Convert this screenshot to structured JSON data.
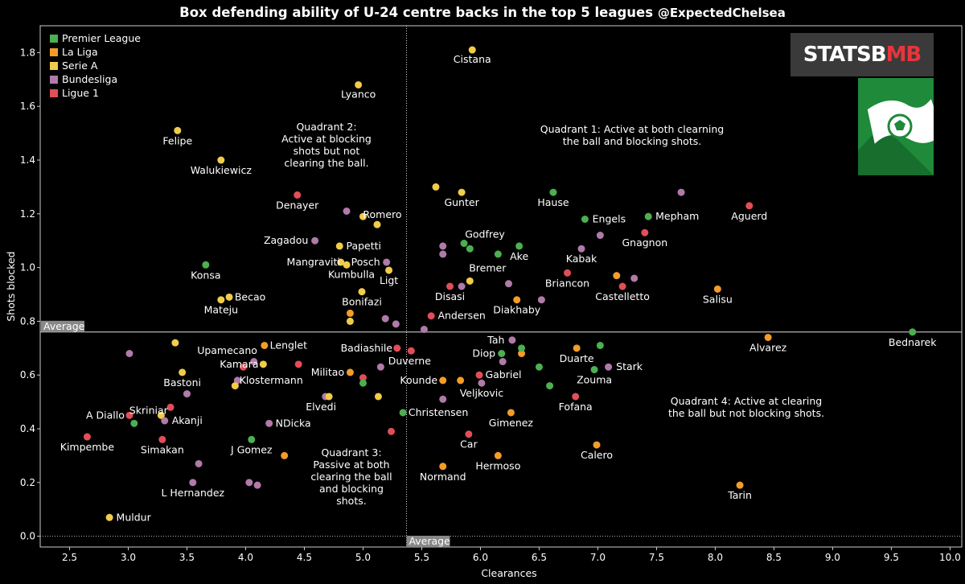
{
  "title": "Box defending ability of U-24 centre backs in the top 5 leagues",
  "handle": "@ExpectedChelsea",
  "logo": {
    "text_main": "STATSB",
    "text_accent": "MB"
  },
  "colors": {
    "premier_league": "#4caf50",
    "la_liga": "#f39c2a",
    "serie_a": "#f1cc4a",
    "bundesliga": "#b07aa9",
    "ligue_1": "#e04e58"
  },
  "legend": [
    {
      "key": "premier_league",
      "label": "Premier League"
    },
    {
      "key": "la_liga",
      "label": "La Liga"
    },
    {
      "key": "serie_a",
      "label": "Serie A"
    },
    {
      "key": "bundesliga",
      "label": "Bundesliga"
    },
    {
      "key": "ligue_1",
      "label": "Ligue 1"
    }
  ],
  "annotations": {
    "q1": [
      "Quadrant 1: Active at both clearning",
      "the ball and blocking shots."
    ],
    "q2": [
      "Quadrant 2:",
      "Active at blocking",
      "shots but not",
      "clearing the ball."
    ],
    "q3": [
      "Quadrant 3:",
      "Passive at both",
      "clearing the ball",
      "and blocking",
      "shots."
    ],
    "q4": [
      "Quadrant 4: Active at clearing",
      "the ball but not blocking shots."
    ],
    "avg_x_label": "Average",
    "avg_y_label": "Average"
  },
  "chart_data": {
    "type": "scatter",
    "xlabel": "Clearances",
    "ylabel": "Shots blocked",
    "xlim": [
      2.25,
      10.1
    ],
    "ylim": [
      -0.04,
      1.9
    ],
    "xticks": [
      "2.5",
      "3.0",
      "3.5",
      "4.0",
      "4.5",
      "5.0",
      "5.5",
      "6.0",
      "6.5",
      "7.0",
      "7.5",
      "8.0",
      "8.5",
      "9.0",
      "9.5",
      "10.0"
    ],
    "yticks": [
      "0.0",
      "0.2",
      "0.4",
      "0.6",
      "0.8",
      "1.0",
      "1.2",
      "1.4",
      "1.6",
      "1.8"
    ],
    "x_average": 5.37,
    "y_average": 0.76,
    "points": [
      {
        "x": 5.93,
        "y": 1.81,
        "league": "serie_a",
        "label": "Cistana"
      },
      {
        "x": 4.96,
        "y": 1.68,
        "league": "serie_a",
        "label": "Lyanco"
      },
      {
        "x": 3.42,
        "y": 1.51,
        "league": "serie_a",
        "label": "Felipe"
      },
      {
        "x": 3.79,
        "y": 1.4,
        "league": "serie_a",
        "label": "Walukiewicz"
      },
      {
        "x": 4.44,
        "y": 1.27,
        "league": "ligue_1",
        "label": "Denayer"
      },
      {
        "x": 4.86,
        "y": 1.21,
        "league": "bundesliga",
        "label": ""
      },
      {
        "x": 5.0,
        "y": 1.19,
        "league": "serie_a",
        "label": "Romero"
      },
      {
        "x": 5.12,
        "y": 1.16,
        "league": "serie_a",
        "label": ""
      },
      {
        "x": 5.62,
        "y": 1.3,
        "league": "serie_a",
        "label": ""
      },
      {
        "x": 5.84,
        "y": 1.28,
        "league": "serie_a",
        "label": "Gunter"
      },
      {
        "x": 6.62,
        "y": 1.28,
        "league": "premier_league",
        "label": "Hause"
      },
      {
        "x": 6.89,
        "y": 1.18,
        "league": "premier_league",
        "label": "Engels"
      },
      {
        "x": 7.43,
        "y": 1.19,
        "league": "premier_league",
        "label": "Mepham"
      },
      {
        "x": 7.71,
        "y": 1.28,
        "league": "bundesliga",
        "label": ""
      },
      {
        "x": 8.29,
        "y": 1.23,
        "league": "ligue_1",
        "label": "Aguerd"
      },
      {
        "x": 7.4,
        "y": 1.13,
        "league": "ligue_1",
        "label": "Gnagnon"
      },
      {
        "x": 7.02,
        "y": 1.12,
        "league": "bundesliga",
        "label": ""
      },
      {
        "x": 4.59,
        "y": 1.1,
        "league": "bundesliga",
        "label": "Zagadou"
      },
      {
        "x": 4.8,
        "y": 1.08,
        "league": "serie_a",
        "label": "Papetti"
      },
      {
        "x": 4.81,
        "y": 1.02,
        "league": "serie_a",
        "label": "Mangraviti"
      },
      {
        "x": 4.86,
        "y": 1.01,
        "league": "serie_a",
        "label": "Kumbulla"
      },
      {
        "x": 5.2,
        "y": 1.02,
        "league": "bundesliga",
        "label": "Posch"
      },
      {
        "x": 5.22,
        "y": 0.99,
        "league": "serie_a",
        "label": "Ligt"
      },
      {
        "x": 5.68,
        "y": 1.08,
        "league": "bundesliga",
        "label": ""
      },
      {
        "x": 5.68,
        "y": 1.05,
        "league": "bundesliga",
        "label": ""
      },
      {
        "x": 5.86,
        "y": 1.09,
        "league": "premier_league",
        "label": "Godfrey"
      },
      {
        "x": 5.91,
        "y": 1.07,
        "league": "premier_league",
        "label": ""
      },
      {
        "x": 6.15,
        "y": 1.05,
        "league": "premier_league",
        "label": ""
      },
      {
        "x": 6.33,
        "y": 1.08,
        "league": "premier_league",
        "label": "Ake"
      },
      {
        "x": 6.86,
        "y": 1.07,
        "league": "bundesliga",
        "label": "Kabak"
      },
      {
        "x": 3.66,
        "y": 1.01,
        "league": "premier_league",
        "label": "Konsa"
      },
      {
        "x": 3.79,
        "y": 0.88,
        "league": "serie_a",
        "label": "Mateju"
      },
      {
        "x": 3.86,
        "y": 0.89,
        "league": "serie_a",
        "label": "Becao"
      },
      {
        "x": 4.99,
        "y": 0.91,
        "league": "serie_a",
        "label": "Bonifazi"
      },
      {
        "x": 4.89,
        "y": 0.83,
        "league": "la_liga",
        "label": ""
      },
      {
        "x": 4.89,
        "y": 0.8,
        "league": "serie_a",
        "label": ""
      },
      {
        "x": 5.19,
        "y": 0.81,
        "league": "bundesliga",
        "label": ""
      },
      {
        "x": 5.28,
        "y": 0.79,
        "league": "bundesliga",
        "label": ""
      },
      {
        "x": 5.52,
        "y": 0.77,
        "league": "bundesliga",
        "label": ""
      },
      {
        "x": 5.58,
        "y": 0.82,
        "league": "ligue_1",
        "label": "Andersen"
      },
      {
        "x": 5.74,
        "y": 0.93,
        "league": "ligue_1",
        "label": "Disasi"
      },
      {
        "x": 5.84,
        "y": 0.93,
        "league": "bundesliga",
        "label": ""
      },
      {
        "x": 5.91,
        "y": 0.95,
        "league": "serie_a",
        "label": "Bremer"
      },
      {
        "x": 6.24,
        "y": 0.94,
        "league": "bundesliga",
        "label": ""
      },
      {
        "x": 6.31,
        "y": 0.88,
        "league": "la_liga",
        "label": "Diakhaby"
      },
      {
        "x": 6.52,
        "y": 0.88,
        "league": "bundesliga",
        "label": ""
      },
      {
        "x": 6.74,
        "y": 0.98,
        "league": "ligue_1",
        "label": "Briancon"
      },
      {
        "x": 7.16,
        "y": 0.97,
        "league": "la_liga",
        "label": ""
      },
      {
        "x": 7.21,
        "y": 0.93,
        "league": "ligue_1",
        "label": "Castelletto"
      },
      {
        "x": 7.31,
        "y": 0.96,
        "league": "bundesliga",
        "label": ""
      },
      {
        "x": 8.02,
        "y": 0.92,
        "league": "la_liga",
        "label": "Salisu"
      },
      {
        "x": 8.45,
        "y": 0.74,
        "league": "la_liga",
        "label": "Alvarez"
      },
      {
        "x": 9.68,
        "y": 0.76,
        "league": "premier_league",
        "label": "Bednarek"
      },
      {
        "x": 3.4,
        "y": 0.72,
        "league": "serie_a",
        "label": ""
      },
      {
        "x": 3.01,
        "y": 0.68,
        "league": "bundesliga",
        "label": ""
      },
      {
        "x": 4.16,
        "y": 0.71,
        "league": "la_liga",
        "label": "Lenglet"
      },
      {
        "x": 3.98,
        "y": 0.63,
        "league": "ligue_1",
        "label": "Upamecano"
      },
      {
        "x": 4.07,
        "y": 0.65,
        "league": "bundesliga",
        "label": ""
      },
      {
        "x": 4.15,
        "y": 0.64,
        "league": "serie_a",
        "label": "Kamara"
      },
      {
        "x": 4.45,
        "y": 0.64,
        "league": "ligue_1",
        "label": ""
      },
      {
        "x": 3.93,
        "y": 0.58,
        "league": "bundesliga",
        "label": "Klostermann"
      },
      {
        "x": 3.91,
        "y": 0.56,
        "league": "serie_a",
        "label": ""
      },
      {
        "x": 3.46,
        "y": 0.61,
        "league": "serie_a",
        "label": "Bastoni"
      },
      {
        "x": 3.5,
        "y": 0.53,
        "league": "bundesliga",
        "label": ""
      },
      {
        "x": 4.89,
        "y": 0.61,
        "league": "la_liga",
        "label": "Militao"
      },
      {
        "x": 5.0,
        "y": 0.59,
        "league": "ligue_1",
        "label": ""
      },
      {
        "x": 5.0,
        "y": 0.57,
        "league": "premier_league",
        "label": ""
      },
      {
        "x": 4.68,
        "y": 0.52,
        "league": "bundesliga",
        "label": ""
      },
      {
        "x": 4.71,
        "y": 0.52,
        "league": "serie_a",
        "label": "Elvedi"
      },
      {
        "x": 5.13,
        "y": 0.52,
        "league": "serie_a",
        "label": ""
      },
      {
        "x": 5.15,
        "y": 0.63,
        "league": "bundesliga",
        "label": ""
      },
      {
        "x": 5.29,
        "y": 0.7,
        "league": "ligue_1",
        "label": "Badiashile"
      },
      {
        "x": 5.41,
        "y": 0.69,
        "league": "ligue_1",
        "label": "Duverne"
      },
      {
        "x": 5.34,
        "y": 0.46,
        "league": "premier_league",
        "label": "Christensen"
      },
      {
        "x": 5.24,
        "y": 0.39,
        "league": "ligue_1",
        "label": ""
      },
      {
        "x": 5.68,
        "y": 0.58,
        "league": "la_liga",
        "label": "Kounde"
      },
      {
        "x": 5.68,
        "y": 0.51,
        "league": "bundesliga",
        "label": ""
      },
      {
        "x": 5.83,
        "y": 0.58,
        "league": "la_liga",
        "label": ""
      },
      {
        "x": 5.99,
        "y": 0.6,
        "league": "ligue_1",
        "label": "Gabriel"
      },
      {
        "x": 6.01,
        "y": 0.57,
        "league": "bundesliga",
        "label": "Veljkovic"
      },
      {
        "x": 6.27,
        "y": 0.73,
        "league": "bundesliga",
        "label": "Tah"
      },
      {
        "x": 6.18,
        "y": 0.68,
        "league": "premier_league",
        "label": "Diop"
      },
      {
        "x": 6.19,
        "y": 0.65,
        "league": "bundesliga",
        "label": ""
      },
      {
        "x": 6.35,
        "y": 0.68,
        "league": "la_liga",
        "label": ""
      },
      {
        "x": 6.35,
        "y": 0.7,
        "league": "premier_league",
        "label": ""
      },
      {
        "x": 6.5,
        "y": 0.63,
        "league": "premier_league",
        "label": ""
      },
      {
        "x": 6.59,
        "y": 0.56,
        "league": "premier_league",
        "label": ""
      },
      {
        "x": 6.82,
        "y": 0.7,
        "league": "la_liga",
        "label": "Duarte"
      },
      {
        "x": 7.02,
        "y": 0.71,
        "league": "premier_league",
        "label": ""
      },
      {
        "x": 6.97,
        "y": 0.62,
        "league": "premier_league",
        "label": "Zouma"
      },
      {
        "x": 7.09,
        "y": 0.63,
        "league": "bundesliga",
        "label": "Stark"
      },
      {
        "x": 6.81,
        "y": 0.52,
        "league": "ligue_1",
        "label": "Fofana"
      },
      {
        "x": 6.26,
        "y": 0.46,
        "league": "la_liga",
        "label": "Gimenez"
      },
      {
        "x": 5.9,
        "y": 0.38,
        "league": "ligue_1",
        "label": "Car"
      },
      {
        "x": 6.99,
        "y": 0.34,
        "league": "la_liga",
        "label": "Calero"
      },
      {
        "x": 5.68,
        "y": 0.26,
        "league": "la_liga",
        "label": "Normand"
      },
      {
        "x": 6.15,
        "y": 0.3,
        "league": "la_liga",
        "label": "Hermoso"
      },
      {
        "x": 8.21,
        "y": 0.19,
        "league": "la_liga",
        "label": "Tarin"
      },
      {
        "x": 3.05,
        "y": 0.42,
        "league": "premier_league",
        "label": "Skriniar"
      },
      {
        "x": 3.01,
        "y": 0.45,
        "league": "ligue_1",
        "label": "A Diallo"
      },
      {
        "x": 3.28,
        "y": 0.45,
        "league": "serie_a",
        "label": ""
      },
      {
        "x": 3.36,
        "y": 0.48,
        "league": "ligue_1",
        "label": ""
      },
      {
        "x": 3.31,
        "y": 0.43,
        "league": "bundesliga",
        "label": "Akanji"
      },
      {
        "x": 2.65,
        "y": 0.37,
        "league": "ligue_1",
        "label": "Kimpembe"
      },
      {
        "x": 3.29,
        "y": 0.36,
        "league": "ligue_1",
        "label": "Simakan"
      },
      {
        "x": 4.05,
        "y": 0.36,
        "league": "premier_league",
        "label": "J Gomez"
      },
      {
        "x": 4.2,
        "y": 0.42,
        "league": "bundesliga",
        "label": "NDicka"
      },
      {
        "x": 4.33,
        "y": 0.3,
        "league": "la_liga",
        "label": ""
      },
      {
        "x": 3.6,
        "y": 0.27,
        "league": "bundesliga",
        "label": ""
      },
      {
        "x": 3.55,
        "y": 0.2,
        "league": "bundesliga",
        "label": "L Hernandez"
      },
      {
        "x": 4.03,
        "y": 0.2,
        "league": "bundesliga",
        "label": ""
      },
      {
        "x": 4.1,
        "y": 0.19,
        "league": "bundesliga",
        "label": ""
      },
      {
        "x": 2.84,
        "y": 0.07,
        "league": "serie_a",
        "label": "Muldur"
      }
    ]
  }
}
